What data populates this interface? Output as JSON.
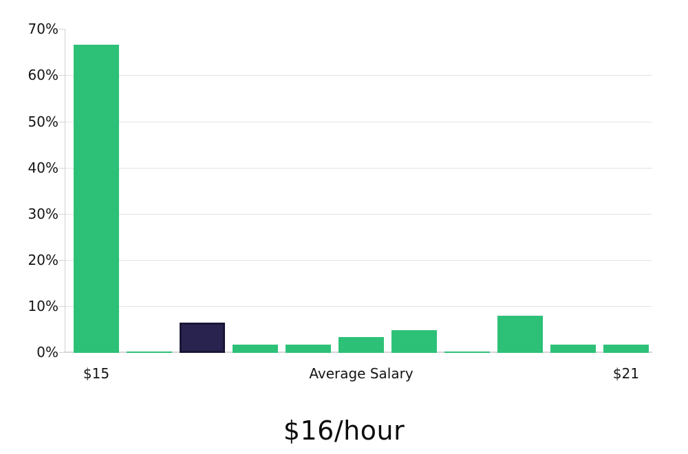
{
  "chart_data": {
    "type": "bar",
    "title": "$16/hour",
    "x_axis_label": "Average Salary",
    "x_tick_labels": [
      {
        "text": "$15",
        "bar_index": 0
      },
      {
        "text": "$21",
        "bar_index": 10
      }
    ],
    "ylim": [
      0,
      70
    ],
    "ytick_values": [
      0,
      10,
      20,
      30,
      40,
      50,
      60,
      70
    ],
    "ytick_labels": [
      "0%",
      "10%",
      "20%",
      "30%",
      "40%",
      "50%",
      "60%",
      "70%"
    ],
    "values": [
      66.7,
      0.3,
      6.5,
      1.8,
      1.8,
      3.4,
      4.9,
      0.3,
      8.0,
      1.8,
      1.8
    ],
    "highlighted_index": 2,
    "bar_color": "#2dc178",
    "highlight_color": "#292350",
    "highlight_border_color": "#1a1635",
    "grid": true,
    "legend": "none"
  }
}
